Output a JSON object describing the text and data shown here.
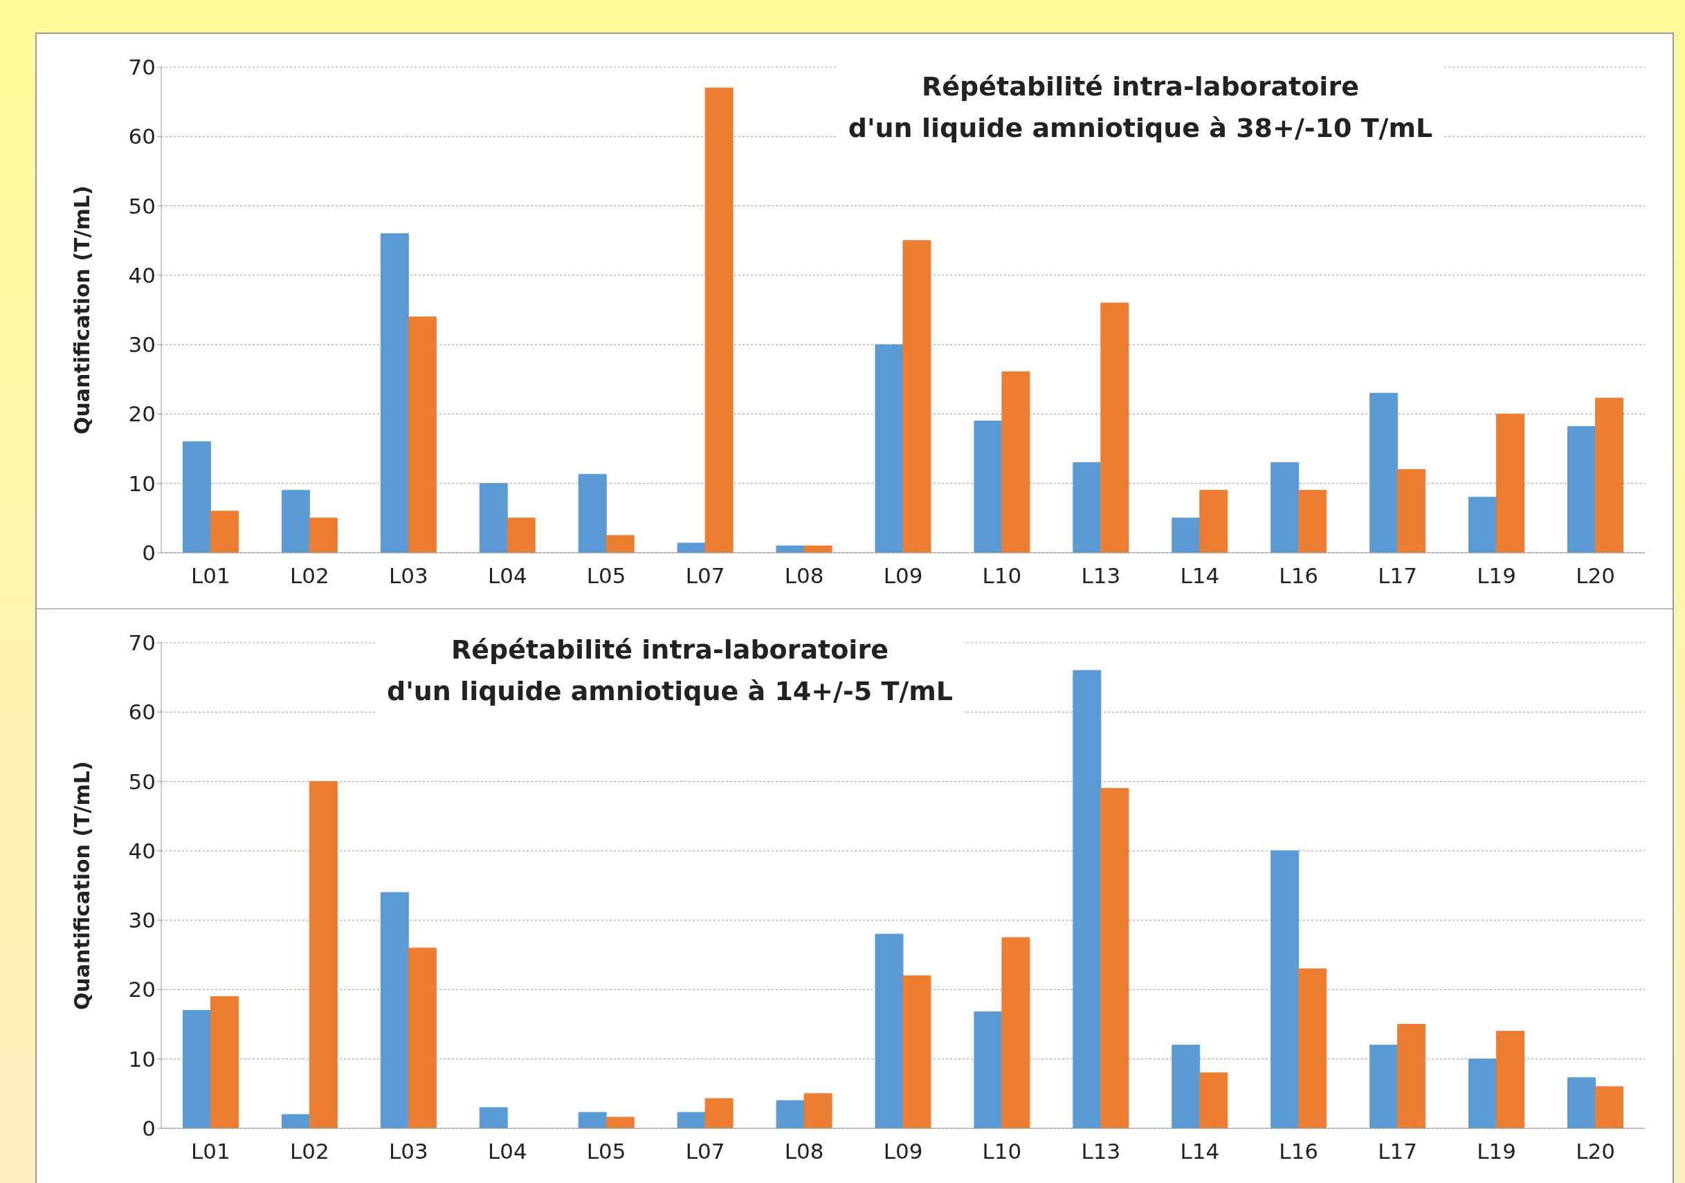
{
  "chart_data": [
    {
      "type": "bar",
      "title": "Répétabilité intra-laboratoire\nd'un liquide amniotique à 38+/-10 T/mL",
      "ylabel": "Quantification (T/mL)",
      "categories": [
        "L01",
        "L02",
        "L03",
        "L04",
        "L05",
        "L07",
        "L08",
        "L09",
        "L10",
        "L13",
        "L14",
        "L16",
        "L17",
        "L19",
        "L20"
      ],
      "series": [
        {
          "color": "#5b9bd5",
          "values": [
            16,
            9,
            46,
            10,
            11.3,
            1.4,
            1,
            30,
            19,
            13,
            5,
            13,
            23,
            8,
            18.2
          ]
        },
        {
          "color": "#ed7d31",
          "values": [
            6,
            5,
            34,
            5,
            2.5,
            67,
            1,
            45,
            26.1,
            36,
            9,
            9,
            12,
            20,
            22.3
          ]
        }
      ],
      "ylim": [
        0,
        70
      ],
      "yticks": [
        0,
        10,
        20,
        30,
        40,
        50,
        60,
        70
      ],
      "grid": "y",
      "legend": false
    },
    {
      "type": "bar",
      "title": "Répétabilité intra-laboratoire\nd'un liquide amniotique à 14+/-5 T/mL",
      "ylabel": "Quantification (T/mL)",
      "categories": [
        "L01",
        "L02",
        "L03",
        "L04",
        "L05",
        "L07",
        "L08",
        "L09",
        "L10",
        "L13",
        "L14",
        "L16",
        "L17",
        "L19",
        "L20"
      ],
      "series": [
        {
          "color": "#5b9bd5",
          "values": [
            17,
            2,
            34,
            3,
            2.3,
            2.3,
            4,
            28,
            16.8,
            66,
            12,
            40,
            12,
            10,
            7.3
          ]
        },
        {
          "color": "#ed7d31",
          "values": [
            19,
            50,
            26,
            0,
            1.6,
            4.3,
            5,
            22,
            27.5,
            49,
            8,
            23,
            15,
            14,
            6
          ]
        }
      ],
      "ylim": [
        0,
        70
      ],
      "yticks": [
        0,
        10,
        20,
        30,
        40,
        50,
        60,
        70
      ],
      "grid": "y",
      "legend": false
    }
  ]
}
